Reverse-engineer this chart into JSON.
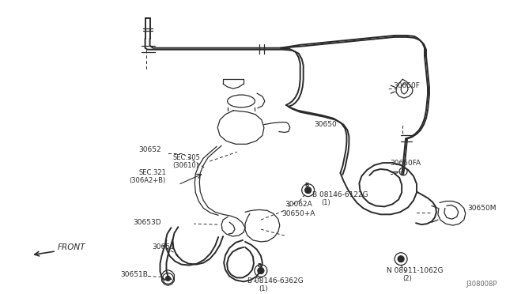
{
  "bg_color": "#ffffff",
  "line_color": "#2a2a2a",
  "text_color": "#2a2a2a",
  "fig_width": 6.4,
  "fig_height": 3.72,
  "dpi": 100,
  "watermark": "J308008P",
  "xlim": [
    0,
    640
  ],
  "ylim": [
    0,
    372
  ]
}
